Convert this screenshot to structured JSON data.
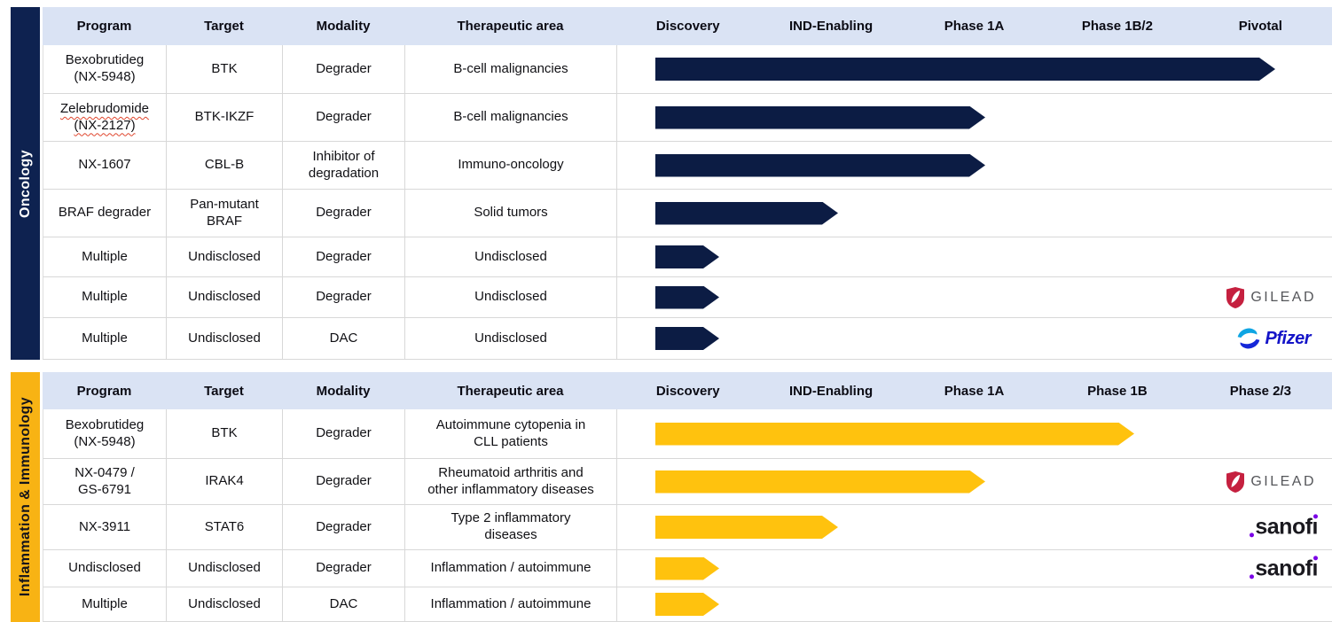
{
  "palette": {
    "header_bg": "#dae3f4",
    "arrow_navy": "#0c1c44",
    "arrow_gold": "#ffc20e",
    "sidebar_navy": "#0e2250",
    "sidebar_gold": "#f8b314",
    "row_border": "#d8d8d8",
    "gilead_red": "#c5203f",
    "gilead_gray": "#55565a",
    "pfizer_blue": "#1414c8",
    "sanofi_black": "#1a191f",
    "sanofi_purple": "#7a00e6",
    "spellcheck_red": "#e0462e"
  },
  "stage_widths": {
    "Discovery": 72,
    "IND-Enabling": 206,
    "Phase 1A": 372,
    "Phase 1B": 540,
    "Phase 1B/2": 540,
    "Phase 2/3": 699,
    "Pivotal": 699
  },
  "partners": {
    "gilead": "GILEAD",
    "pfizer": "Pfizer",
    "sanofi": "sanofi"
  },
  "sections": [
    {
      "label": "Oncology",
      "columns": [
        "Program",
        "Target",
        "Modality",
        "Therapeutic area"
      ],
      "stages": [
        "Discovery",
        "IND-Enabling",
        "Phase 1A",
        "Phase 1B/2",
        "Pivotal"
      ],
      "rows": [
        {
          "program_line1": "Bexobrutideg",
          "program_line2": "(NX-5948)",
          "target_line1": "BTK",
          "target_line2": "",
          "mod_line1": "Degrader",
          "mod_line2": "",
          "ta_line1": "B-cell malignancies",
          "ta_line2": "",
          "stage": "Pivotal",
          "partner": ""
        },
        {
          "program_line1": "Zelebrudomide",
          "program_line2": "(NX-2127)",
          "target_line1": "BTK-IKZF",
          "target_line2": "",
          "mod_line1": "Degrader",
          "mod_line2": "",
          "ta_line1": "B-cell malignancies",
          "ta_line2": "",
          "stage": "Phase 1A",
          "partner": ""
        },
        {
          "program_line1": "NX-1607",
          "program_line2": "",
          "target_line1": "CBL-B",
          "target_line2": "",
          "mod_line1": "Inhibitor of",
          "mod_line2": "degradation",
          "ta_line1": "Immuno-oncology",
          "ta_line2": "",
          "stage": "Phase 1A",
          "partner": ""
        },
        {
          "program_line1": "BRAF degrader",
          "program_line2": "",
          "target_line1": "Pan-mutant",
          "target_line2": "BRAF",
          "mod_line1": "Degrader",
          "mod_line2": "",
          "ta_line1": "Solid tumors",
          "ta_line2": "",
          "stage": "IND-Enabling",
          "partner": ""
        },
        {
          "program_line1": "Multiple",
          "program_line2": "",
          "target_line1": "Undisclosed",
          "target_line2": "",
          "mod_line1": "Degrader",
          "mod_line2": "",
          "ta_line1": "Undisclosed",
          "ta_line2": "",
          "stage": "Discovery",
          "partner": ""
        },
        {
          "program_line1": "Multiple",
          "program_line2": "",
          "target_line1": "Undisclosed",
          "target_line2": "",
          "mod_line1": "Degrader",
          "mod_line2": "",
          "ta_line1": "Undisclosed",
          "ta_line2": "",
          "stage": "Discovery",
          "partner": "Gilead"
        },
        {
          "program_line1": "Multiple",
          "program_line2": "",
          "target_line1": "Undisclosed",
          "target_line2": "",
          "mod_line1": "DAC",
          "mod_line2": "",
          "ta_line1": "Undisclosed",
          "ta_line2": "",
          "stage": "Discovery",
          "partner": "Pfizer"
        }
      ]
    },
    {
      "label": "Inflammation & Immunology",
      "columns": [
        "Program",
        "Target",
        "Modality",
        "Therapeutic area"
      ],
      "stages": [
        "Discovery",
        "IND-Enabling",
        "Phase 1A",
        "Phase 1B",
        "Phase 2/3"
      ],
      "rows": [
        {
          "program_line1": "Bexobrutideg",
          "program_line2": "(NX-5948)",
          "target_line1": "BTK",
          "target_line2": "",
          "mod_line1": "Degrader",
          "mod_line2": "",
          "ta_line1": "Autoimmune cytopenia in",
          "ta_line2": "CLL patients",
          "stage": "Phase 1B",
          "partner": ""
        },
        {
          "program_line1": "NX-0479 /",
          "program_line2": "GS-6791",
          "target_line1": "IRAK4",
          "target_line2": "",
          "mod_line1": "Degrader",
          "mod_line2": "",
          "ta_line1": "Rheumatoid arthritis and",
          "ta_line2": "other inflammatory diseases",
          "stage": "Phase 1A",
          "partner": "Gilead"
        },
        {
          "program_line1": "NX-3911",
          "program_line2": "",
          "target_line1": "STAT6",
          "target_line2": "",
          "mod_line1": "Degrader",
          "mod_line2": "",
          "ta_line1": "Type 2 inflammatory",
          "ta_line2": "diseases",
          "stage": "IND-Enabling",
          "partner": "Sanofi"
        },
        {
          "program_line1": "Undisclosed",
          "program_line2": "",
          "target_line1": "Undisclosed",
          "target_line2": "",
          "mod_line1": "Degrader",
          "mod_line2": "",
          "ta_line1": "Inflammation / autoimmune",
          "ta_line2": "",
          "stage": "Discovery",
          "partner": "Sanofi"
        },
        {
          "program_line1": "Multiple",
          "program_line2": "",
          "target_line1": "Undisclosed",
          "target_line2": "",
          "mod_line1": "DAC",
          "mod_line2": "",
          "ta_line1": "Inflammation / autoimmune",
          "ta_line2": "",
          "stage": "Discovery",
          "partner": ""
        }
      ]
    }
  ]
}
